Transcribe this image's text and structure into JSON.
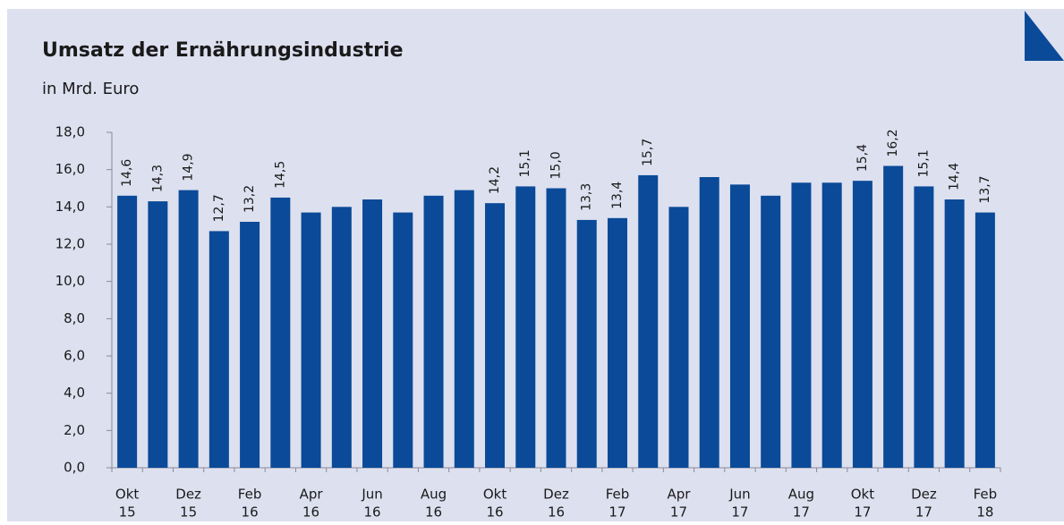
{
  "chart_data": {
    "type": "bar",
    "title": "Umsatz der Ernährungsindustrie",
    "subtitle": "in Mrd. Euro",
    "categories": [
      [
        "Okt",
        "15"
      ],
      null,
      [
        "Dez",
        "15"
      ],
      null,
      [
        "Feb",
        "16"
      ],
      null,
      [
        "Apr",
        "16"
      ],
      null,
      [
        "Jun",
        "16"
      ],
      null,
      [
        "Aug",
        "16"
      ],
      null,
      [
        "Okt",
        "16"
      ],
      null,
      [
        "Dez",
        "16"
      ],
      null,
      [
        "Feb",
        "17"
      ],
      null,
      [
        "Apr",
        "17"
      ],
      null,
      [
        "Jun",
        "17"
      ],
      null,
      [
        "Aug",
        "17"
      ],
      null,
      [
        "Okt",
        "17"
      ],
      null,
      [
        "Dez",
        "17"
      ],
      null,
      [
        "Feb",
        "18"
      ]
    ],
    "values": [
      14.6,
      14.3,
      14.9,
      12.7,
      13.2,
      14.5,
      13.7,
      14.0,
      14.4,
      13.7,
      14.6,
      14.9,
      14.2,
      15.1,
      15.0,
      13.3,
      13.4,
      15.7,
      14.0,
      15.6,
      15.2,
      14.6,
      15.3,
      15.3,
      15.4,
      16.2,
      15.1,
      14.4,
      13.7
    ],
    "value_labels": [
      "14,6",
      "14,3",
      "14,9",
      "12,7",
      "13,2",
      "14,5",
      null,
      null,
      null,
      null,
      null,
      null,
      "14,2",
      "15,1",
      "15,0",
      "13,3",
      "13,4",
      "15,7",
      null,
      null,
      null,
      null,
      null,
      null,
      "15,4",
      "16,2",
      "15,1",
      "14,4",
      "13,7"
    ],
    "color": "#0a4a98",
    "ylim": [
      0,
      18
    ],
    "yticks": [
      {
        "value": 0,
        "label": "0,0"
      },
      {
        "value": 2,
        "label": "2,0"
      },
      {
        "value": 4,
        "label": "4,0"
      },
      {
        "value": 6,
        "label": "6,0"
      },
      {
        "value": 8,
        "label": "8,0"
      },
      {
        "value": 10,
        "label": "10,0"
      },
      {
        "value": 12,
        "label": "12,0"
      },
      {
        "value": 14,
        "label": "14,0"
      },
      {
        "value": 16,
        "label": "16,0"
      },
      {
        "value": 18,
        "label": "18,0"
      }
    ]
  }
}
